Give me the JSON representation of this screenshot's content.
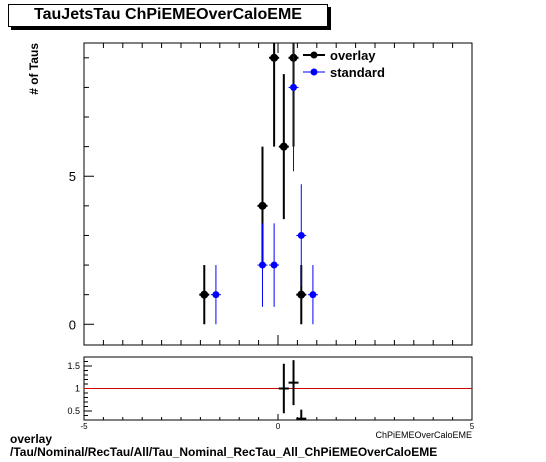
{
  "chart_data": [
    {
      "type": "scatter",
      "title": "TauJetsTau ChPiEMEOverCaloEME",
      "xlabel": "ChPiEMEOverCaloEME",
      "ylabel": "# of Taus",
      "xlim": [
        -5,
        5
      ],
      "ylim": [
        -0.7,
        9.5
      ],
      "yticks": [
        0,
        5
      ],
      "legend_position": "top-right",
      "series": [
        {
          "name": "overlay",
          "color": "#000000",
          "x": [
            -1.9,
            -0.4,
            -0.1,
            0.15,
            0.4,
            0.6
          ],
          "y": [
            1,
            4,
            9,
            6,
            9,
            1
          ],
          "yerr": [
            1,
            2,
            3,
            2.45,
            3,
            1
          ]
        },
        {
          "name": "standard",
          "color": "#0000ff",
          "x": [
            -1.6,
            -0.4,
            -0.1,
            0.4,
            0.6,
            0.9
          ],
          "y": [
            1,
            2,
            2,
            8,
            3,
            1
          ],
          "yerr": [
            1,
            1.41,
            1.41,
            2.83,
            1.73,
            1
          ]
        }
      ]
    },
    {
      "type": "scatter",
      "xlim": [
        -5,
        5
      ],
      "ylim": [
        0.3,
        1.7
      ],
      "xticks": [
        -5,
        0,
        5
      ],
      "yticks": [
        0.5,
        1,
        1.5
      ],
      "reference_line": {
        "y": 1,
        "color": "#cc0000"
      },
      "series": [
        {
          "name": "",
          "color": "#000000",
          "x": [
            0.15,
            0.4,
            0.6
          ],
          "y": [
            1.0,
            1.13,
            0.33
          ],
          "yerr": [
            0.55,
            0.5,
            0.2
          ]
        }
      ]
    }
  ],
  "footer": {
    "line1": "overlay",
    "line2": "/Tau/Nominal/RecTau/All/Tau_Nominal_RecTau_All_ChPiEMEOverCaloEME"
  }
}
